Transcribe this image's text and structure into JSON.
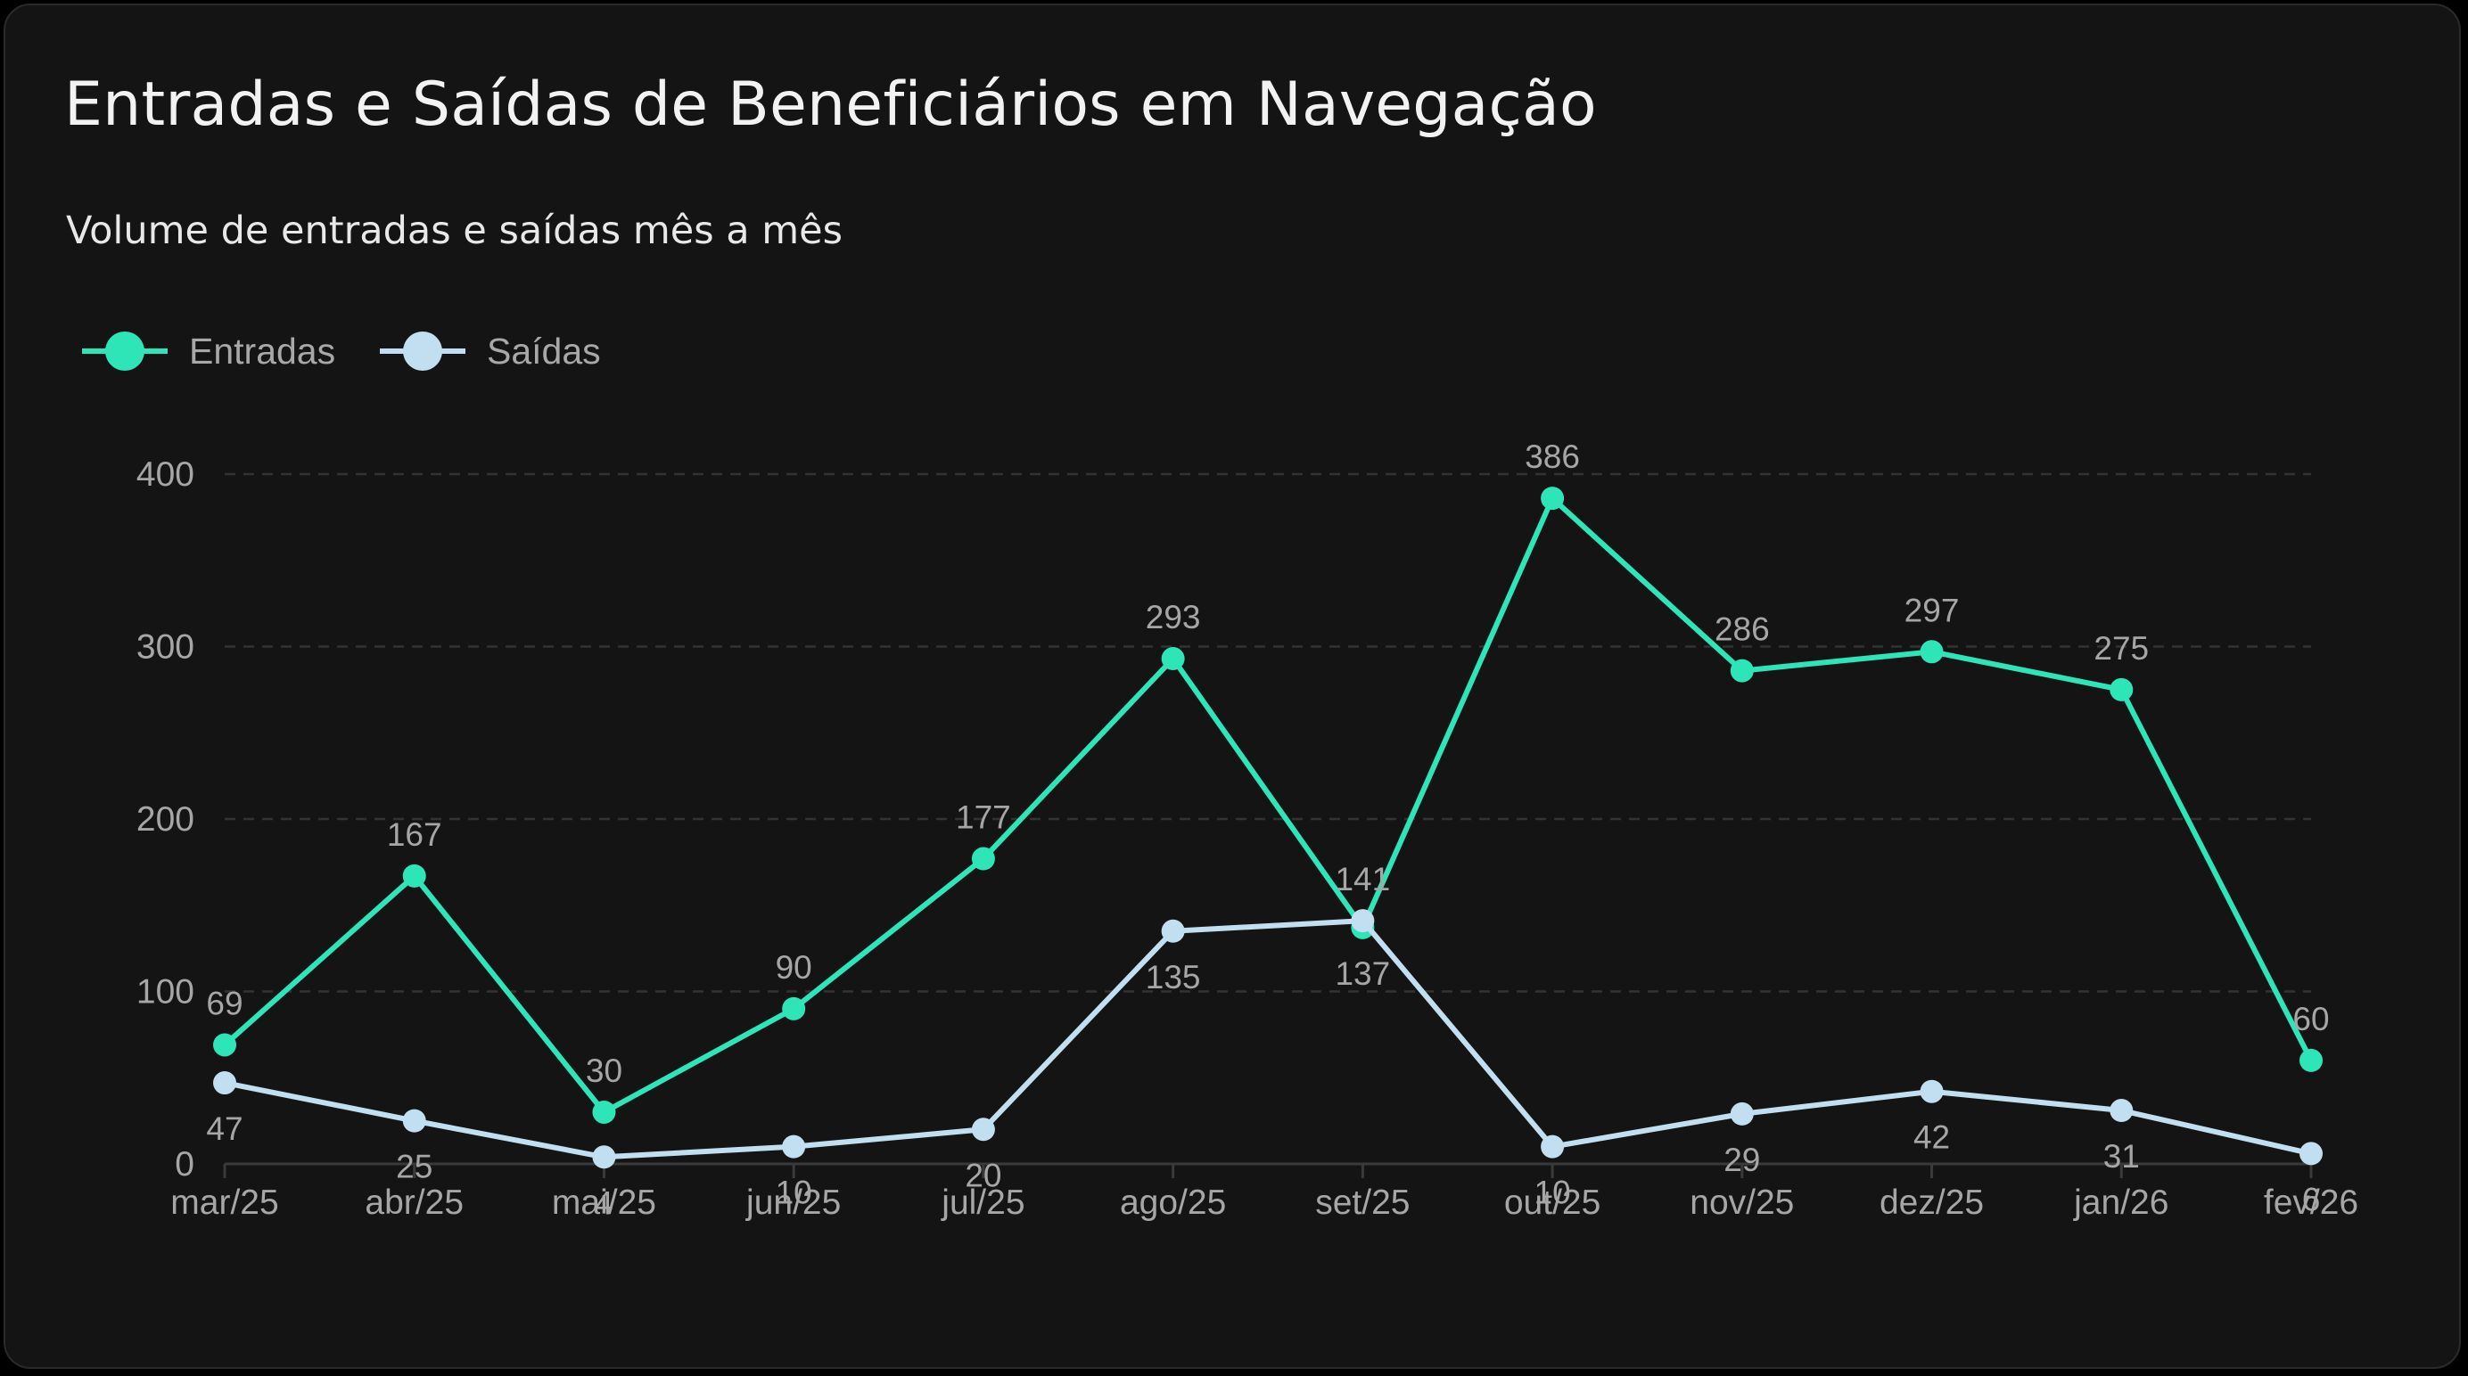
{
  "header": {
    "title": "Entradas e Saídas de Beneficiários em Navegação",
    "subtitle": "Volume de entradas e saídas mês a mês"
  },
  "colors": {
    "entradas": "#2ee5b8",
    "saidas": "#c1dff0",
    "grid": "#333333",
    "axis": "#3a3a3a"
  },
  "chart_data": {
    "type": "line",
    "categories": [
      "mar/25",
      "abr/25",
      "mai/25",
      "jun/25",
      "jul/25",
      "ago/25",
      "set/25",
      "out/25",
      "nov/25",
      "dez/25",
      "jan/26",
      "fev/26"
    ],
    "series": [
      {
        "name": "Entradas",
        "color": "#2ee5b8",
        "values": [
          69,
          167,
          30,
          90,
          177,
          293,
          137,
          386,
          286,
          297,
          275,
          60
        ]
      },
      {
        "name": "Saídas",
        "color": "#c1dff0",
        "values": [
          47,
          25,
          4,
          10,
          20,
          135,
          141,
          10,
          29,
          42,
          31,
          6
        ]
      }
    ],
    "ylim": [
      0,
      400
    ],
    "yticks": [
      0,
      100,
      200,
      300,
      400
    ],
    "grid": true,
    "legend": "top-left"
  }
}
